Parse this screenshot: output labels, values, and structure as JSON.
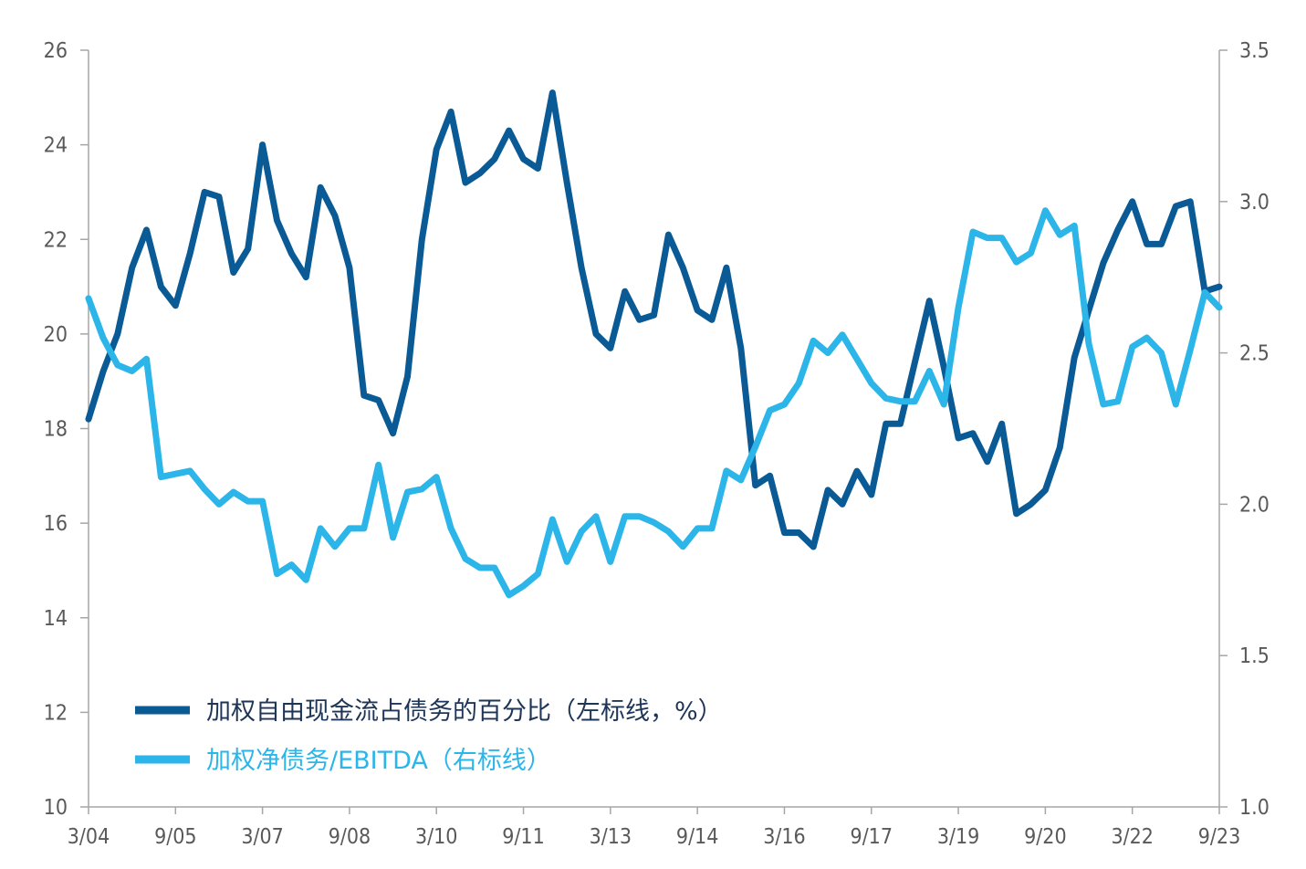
{
  "chart_data": {
    "type": "line",
    "x": [
      "3/04",
      "6/04",
      "9/04",
      "12/04",
      "3/05",
      "6/05",
      "9/05",
      "12/05",
      "3/06",
      "6/06",
      "9/06",
      "12/06",
      "3/07",
      "6/07",
      "9/07",
      "12/07",
      "3/08",
      "6/08",
      "9/08",
      "12/08",
      "3/09",
      "6/09",
      "9/09",
      "12/09",
      "3/10",
      "6/10",
      "9/10",
      "12/10",
      "3/11",
      "6/11",
      "9/11",
      "12/11",
      "3/12",
      "6/12",
      "9/12",
      "12/12",
      "3/13",
      "6/13",
      "9/13",
      "12/13",
      "3/14",
      "6/14",
      "9/14",
      "12/14",
      "3/15",
      "6/15",
      "9/15",
      "12/15",
      "3/16",
      "6/16",
      "9/16",
      "12/16",
      "3/17",
      "6/17",
      "9/17",
      "12/17",
      "3/18",
      "6/18",
      "9/18",
      "12/18",
      "3/19",
      "6/19",
      "9/19",
      "12/19",
      "3/20",
      "6/20",
      "9/20",
      "12/20",
      "3/21",
      "6/21",
      "9/21",
      "12/21",
      "3/22",
      "6/22",
      "9/22",
      "12/22",
      "3/23",
      "6/23",
      "9/23"
    ],
    "x_tick_labels": [
      "3/04",
      "9/05",
      "3/07",
      "9/08",
      "3/10",
      "9/11",
      "3/13",
      "9/14",
      "3/16",
      "9/17",
      "3/19",
      "9/20",
      "3/22",
      "9/23"
    ],
    "y_left": {
      "range": [
        10,
        26
      ],
      "ticks": [
        "10",
        "12",
        "14",
        "16",
        "18",
        "20",
        "22",
        "24",
        "26"
      ]
    },
    "y_right": {
      "range": [
        1.0,
        3.5
      ],
      "ticks": [
        "1.0",
        "1.5",
        "2.0",
        "2.5",
        "3.0",
        "3.5"
      ]
    },
    "grid": false,
    "legend_position": "bottom-left",
    "series": [
      {
        "name": "加权自由现金流占债务的百分比（左标线，%）",
        "axis": "left",
        "color": "#0a5a96",
        "values": [
          18.2,
          19.2,
          20.0,
          21.4,
          22.2,
          21.0,
          20.6,
          21.7,
          23.0,
          22.9,
          21.3,
          21.8,
          24.0,
          22.4,
          21.7,
          21.2,
          23.1,
          22.5,
          21.4,
          18.7,
          18.6,
          17.9,
          19.1,
          22.0,
          23.9,
          24.7,
          23.2,
          23.4,
          23.7,
          24.3,
          23.7,
          23.5,
          25.1,
          23.2,
          21.4,
          20.0,
          19.7,
          20.9,
          20.3,
          20.4,
          22.1,
          21.4,
          20.5,
          20.3,
          21.4,
          19.7,
          16.8,
          17.0,
          15.8,
          15.8,
          15.5,
          16.7,
          16.4,
          17.1,
          16.6,
          18.1,
          18.1,
          19.4,
          20.7,
          19.3,
          17.8,
          17.9,
          17.3,
          18.1,
          16.2,
          16.4,
          16.7,
          17.6,
          19.5,
          20.5,
          21.5,
          22.2,
          22.8,
          21.9,
          21.9,
          22.7,
          22.8,
          20.9,
          21.0
        ]
      },
      {
        "name": "加权净债务/EBITDA（右标线）",
        "axis": "right",
        "color": "#2bb5e8",
        "values": [
          2.68,
          2.55,
          2.46,
          2.44,
          2.48,
          2.09,
          2.1,
          2.11,
          2.05,
          2.0,
          2.04,
          2.01,
          2.01,
          1.77,
          1.8,
          1.75,
          1.92,
          1.86,
          1.92,
          1.92,
          2.13,
          1.89,
          2.04,
          2.05,
          2.09,
          1.92,
          1.82,
          1.79,
          1.79,
          1.7,
          1.73,
          1.77,
          1.95,
          1.81,
          1.91,
          1.96,
          1.81,
          1.96,
          1.96,
          1.94,
          1.91,
          1.86,
          1.92,
          1.92,
          2.11,
          2.08,
          2.19,
          2.31,
          2.33,
          2.4,
          2.54,
          2.5,
          2.56,
          2.48,
          2.4,
          2.35,
          2.34,
          2.34,
          2.44,
          2.33,
          2.65,
          2.9,
          2.88,
          2.88,
          2.8,
          2.83,
          2.97,
          2.89,
          2.92,
          2.53,
          2.33,
          2.34,
          2.52,
          2.55,
          2.5,
          2.33,
          2.51,
          2.7,
          2.65
        ]
      }
    ]
  }
}
